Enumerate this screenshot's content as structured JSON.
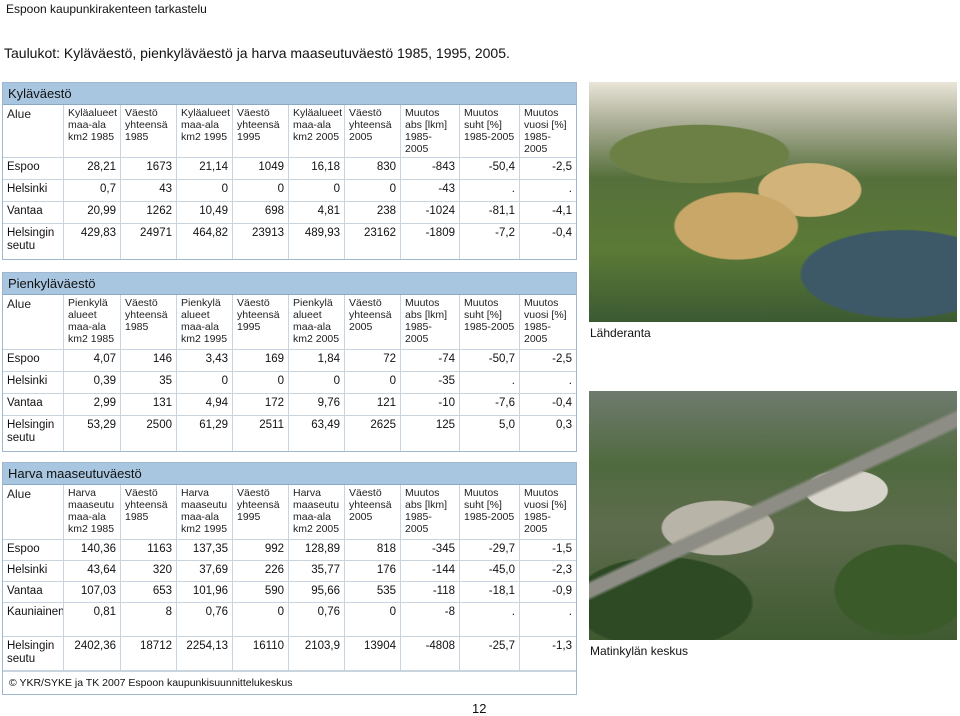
{
  "header": "Espoon kaupunkirakenteen tarkastelu",
  "title": "Taulukot: Kyläväestö, pienkyläväestö ja harva maaseutuväestö 1985, 1995, 2005.",
  "tables": {
    "kylavaesto": {
      "title": "Kyläväestö",
      "headers": [
        "Alue",
        "Kyläalueet maa-ala km2 1985",
        "Väestö yhteensä 1985",
        "Kyläalueet maa-ala km2 1995",
        "Väestö yhteensä 1995",
        "Kyläalueet maa-ala km2 2005",
        "Väestö yhteensä 2005",
        "Muutos abs [lkm] 1985-2005",
        "Muutos suht [%] 1985-2005",
        "Muutos vuosi [%] 1985-2005"
      ],
      "rows": [
        [
          "Espoo",
          "28,21",
          "1673",
          "21,14",
          "1049",
          "16,18",
          "830",
          "-843",
          "-50,4",
          "-2,5"
        ],
        [
          "Helsinki",
          "0,7",
          "43",
          "0",
          "0",
          "0",
          "0",
          "-43",
          ".",
          "."
        ],
        [
          "Vantaa",
          "20,99",
          "1262",
          "10,49",
          "698",
          "4,81",
          "238",
          "-1024",
          "-81,1",
          "-4,1"
        ],
        [
          "Helsingin seutu",
          "429,83",
          "24971",
          "464,82",
          "23913",
          "489,93",
          "23162",
          "-1809",
          "-7,2",
          "-0,4"
        ]
      ]
    },
    "pienkylavaesto": {
      "title": "Pienkyläväestö",
      "headers": [
        "Alue",
        "Pienkylä alueet maa-ala km2 1985",
        "Väestö yhteensä 1985",
        "Pienkylä alueet maa-ala km2 1995",
        "Väestö yhteensä 1995",
        "Pienkylä alueet maa-ala km2 2005",
        "Väestö yhteensä 2005",
        "Muutos abs [lkm] 1985-2005",
        "Muutos suht [%] 1985-2005",
        "Muutos vuosi [%] 1985-2005"
      ],
      "rows": [
        [
          "Espoo",
          "4,07",
          "146",
          "3,43",
          "169",
          "1,84",
          "72",
          "-74",
          "-50,7",
          "-2,5"
        ],
        [
          "Helsinki",
          "0,39",
          "35",
          "0",
          "0",
          "0",
          "0",
          "-35",
          ".",
          "."
        ],
        [
          "Vantaa",
          "2,99",
          "131",
          "4,94",
          "172",
          "9,76",
          "121",
          "-10",
          "-7,6",
          "-0,4"
        ],
        [
          "Helsingin seutu",
          "53,29",
          "2500",
          "61,29",
          "2511",
          "63,49",
          "2625",
          "125",
          "5,0",
          "0,3"
        ]
      ]
    },
    "harva": {
      "title": "Harva maaseutuväestö",
      "headers": [
        "Alue",
        "Harva maaseutu maa-ala km2 1985",
        "Väestö yhteensä 1985",
        "Harva maaseutu maa-ala km2 1995",
        "Väestö yhteensä 1995",
        "Harva maaseutu maa-ala km2 2005",
        "Väestö yhteensä 2005",
        "Muutos abs [lkm] 1985-2005",
        "Muutos suht [%] 1985-2005",
        "Muutos vuosi [%] 1985-2005"
      ],
      "rows": [
        [
          "Espoo",
          "140,36",
          "1163",
          "137,35",
          "992",
          "128,89",
          "818",
          "-345",
          "-29,7",
          "-1,5"
        ],
        [
          "Helsinki",
          "43,64",
          "320",
          "37,69",
          "226",
          "35,77",
          "176",
          "-144",
          "-45,0",
          "-2,3"
        ],
        [
          "Vantaa",
          "107,03",
          "653",
          "101,96",
          "590",
          "95,66",
          "535",
          "-118",
          "-18,1",
          "-0,9"
        ],
        [
          "Kauniainen",
          "0,81",
          "8",
          "0,76",
          "0",
          "0,76",
          "0",
          "-8",
          ".",
          "."
        ],
        [
          "Helsingin seutu",
          "2402,36",
          "18712",
          "2254,13",
          "16110",
          "2103,9",
          "13904",
          "-4808",
          "-25,7",
          "-1,3"
        ]
      ],
      "source": "© YKR/SYKE ja TK 2007 Espoon kaupunkisuunnittelukeskus"
    }
  },
  "captions": {
    "photo1": "Lähderanta",
    "photo2": "Matinkylän keskus"
  },
  "page_number": "12"
}
